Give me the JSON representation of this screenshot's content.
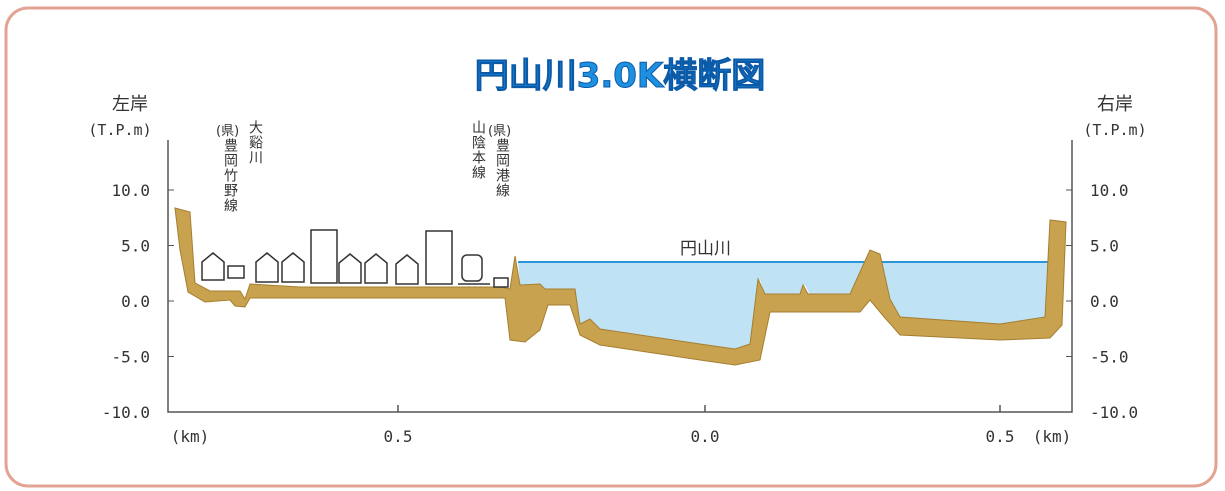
{
  "title": "円山川3.0K横断図",
  "left_axis": {
    "label": "左岸",
    "unit": "(T.P.m)"
  },
  "right_axis": {
    "label": "右岸",
    "unit": "(T.P.m)"
  },
  "y_ticks": [
    "10.0",
    "5.0",
    "0.0",
    "-5.0",
    "-10.0"
  ],
  "x_ticks": [
    "(km)",
    "0.5",
    "0.0",
    "0.5",
    "(km)"
  ],
  "annotations": {
    "road_left": {
      "prefix": "(県)",
      "name": "豊岡竹野線"
    },
    "stream": "大谿川",
    "railway": "山陰本線",
    "road_right": {
      "prefix": "(県)",
      "name": "豊岡港線"
    },
    "river": "円山川"
  }
}
